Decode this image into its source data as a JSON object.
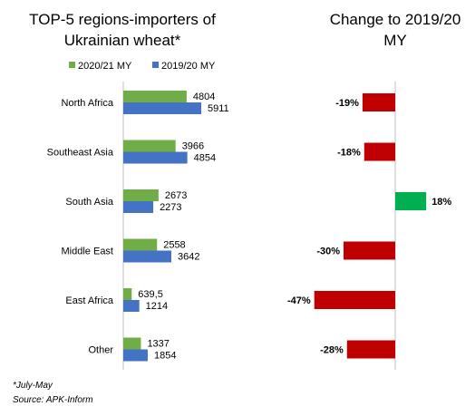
{
  "chart_data": [
    {
      "type": "bar",
      "orientation": "horizontal",
      "title": "TOP-5 regions-importers of Ukrainian wheat*",
      "categories": [
        "North Africa",
        "Southeast Asia",
        "South Asia",
        "Middle East",
        "East Africa",
        "Other"
      ],
      "series": [
        {
          "name": "2020/21 MY",
          "color": "#70ad47",
          "values": [
            4804,
            3966,
            2673,
            2558,
            639.5,
            1337
          ],
          "labels": [
            "4804",
            "3966",
            "2673",
            "2558",
            "639,5",
            "1337"
          ]
        },
        {
          "name": "2019/20 MY",
          "color": "#4472c4",
          "values": [
            5911,
            4854,
            2273,
            3642,
            1214,
            1854
          ],
          "labels": [
            "5911",
            "4854",
            "2273",
            "3642",
            "1214",
            "1854"
          ]
        }
      ],
      "legend": "top",
      "grid": false,
      "xlim": [
        0,
        7000
      ]
    },
    {
      "type": "bar",
      "orientation": "horizontal",
      "title": "Change to 2019/20 MY",
      "categories": [
        "North Africa",
        "Southeast Asia",
        "South Asia",
        "Middle East",
        "East Africa",
        "Other"
      ],
      "values": [
        -19,
        -18,
        18,
        -30,
        -47,
        -28
      ],
      "labels": [
        "-19%",
        "-18%",
        "18%",
        "-30%",
        "-47%",
        "-28%"
      ],
      "colors": {
        "negative": "#c00000",
        "positive": "#00b050"
      },
      "unit": "%",
      "xlim": [
        -50,
        20
      ],
      "grid": false
    }
  ],
  "notes": {
    "footnote": "*July-May",
    "source": "Source: APK-Inform"
  }
}
